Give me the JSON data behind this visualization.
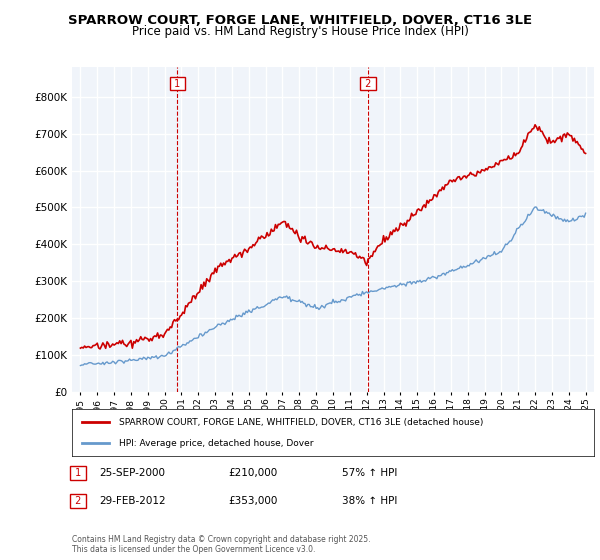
{
  "title": "SPARROW COURT, FORGE LANE, WHITFIELD, DOVER, CT16 3LE",
  "subtitle": "Price paid vs. HM Land Registry's House Price Index (HPI)",
  "red_label": "SPARROW COURT, FORGE LANE, WHITFIELD, DOVER, CT16 3LE (detached house)",
  "blue_label": "HPI: Average price, detached house, Dover",
  "annotation1_date": "25-SEP-2000",
  "annotation1_price": "£210,000",
  "annotation1_hpi": "57% ↑ HPI",
  "annotation2_date": "29-FEB-2012",
  "annotation2_price": "£353,000",
  "annotation2_hpi": "38% ↑ HPI",
  "footer": "Contains HM Land Registry data © Crown copyright and database right 2025.\nThis data is licensed under the Open Government Licence v3.0.",
  "ylim_min": 0,
  "ylim_max": 880000,
  "background_color": "#f0f4fa",
  "plot_bg_color": "#f0f4fa",
  "red_color": "#cc0000",
  "blue_color": "#6699cc",
  "vline_color": "#cc0000",
  "grid_color": "#ffffff"
}
